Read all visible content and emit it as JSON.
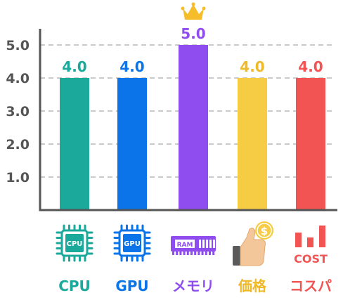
{
  "chart_data": {
    "type": "bar",
    "categories": [
      "CPU",
      "GPU",
      "メモリ",
      "価格",
      "コスパ"
    ],
    "values": [
      4.0,
      4.0,
      5.0,
      4.0,
      4.0
    ],
    "value_labels": [
      "4.0",
      "4.0",
      "5.0",
      "4.0",
      "4.0"
    ],
    "colors": [
      "#1aa99a",
      "#0b74e8",
      "#8f4df0",
      "#f7cc45",
      "#f25353"
    ],
    "label_colors": [
      "#1aa99a",
      "#0b74e8",
      "#8f4df0",
      "#f0b92a",
      "#f25353"
    ],
    "yticks": [
      "1.0",
      "2.0",
      "3.0",
      "4.0",
      "5.0"
    ],
    "ylim": [
      0,
      5.0
    ],
    "grid": true,
    "highlight": {
      "index": 2,
      "icon": "crown-icon",
      "color": "#f6bd2a"
    }
  },
  "icons": {
    "cpu_chip_text": "CPU",
    "gpu_chip_text": "GPU",
    "ram_text": "RAM",
    "price_coin_text": "$",
    "cost_text": "COST"
  },
  "icon_names": [
    "cpu-chip-icon",
    "gpu-chip-icon",
    "ram-module-icon",
    "thumbs-up-coin-icon",
    "cost-bars-icon"
  ]
}
